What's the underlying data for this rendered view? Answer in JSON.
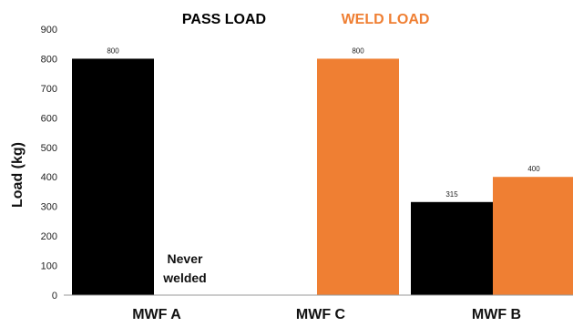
{
  "chart_data": {
    "type": "bar",
    "categories": [
      "MWF A",
      "MWF C",
      "MWF B"
    ],
    "series": [
      {
        "name": "PASS LOAD",
        "values": [
          800,
          null,
          315
        ],
        "color": "#000000"
      },
      {
        "name": "WELD LOAD",
        "values": [
          null,
          800,
          400
        ],
        "color": "#ef7f33"
      }
    ],
    "data_labels": [
      [
        "800",
        null,
        "315"
      ],
      [
        null,
        "800",
        "400"
      ]
    ],
    "ylabel": "Load (kg)",
    "xlabel": "",
    "ylim": [
      0,
      900
    ],
    "yticks": [
      0,
      100,
      200,
      300,
      400,
      500,
      600,
      700,
      800,
      900
    ],
    "grid": false,
    "legend_placement": "top",
    "annotation": {
      "line1": "Never",
      "line2": "welded"
    }
  }
}
